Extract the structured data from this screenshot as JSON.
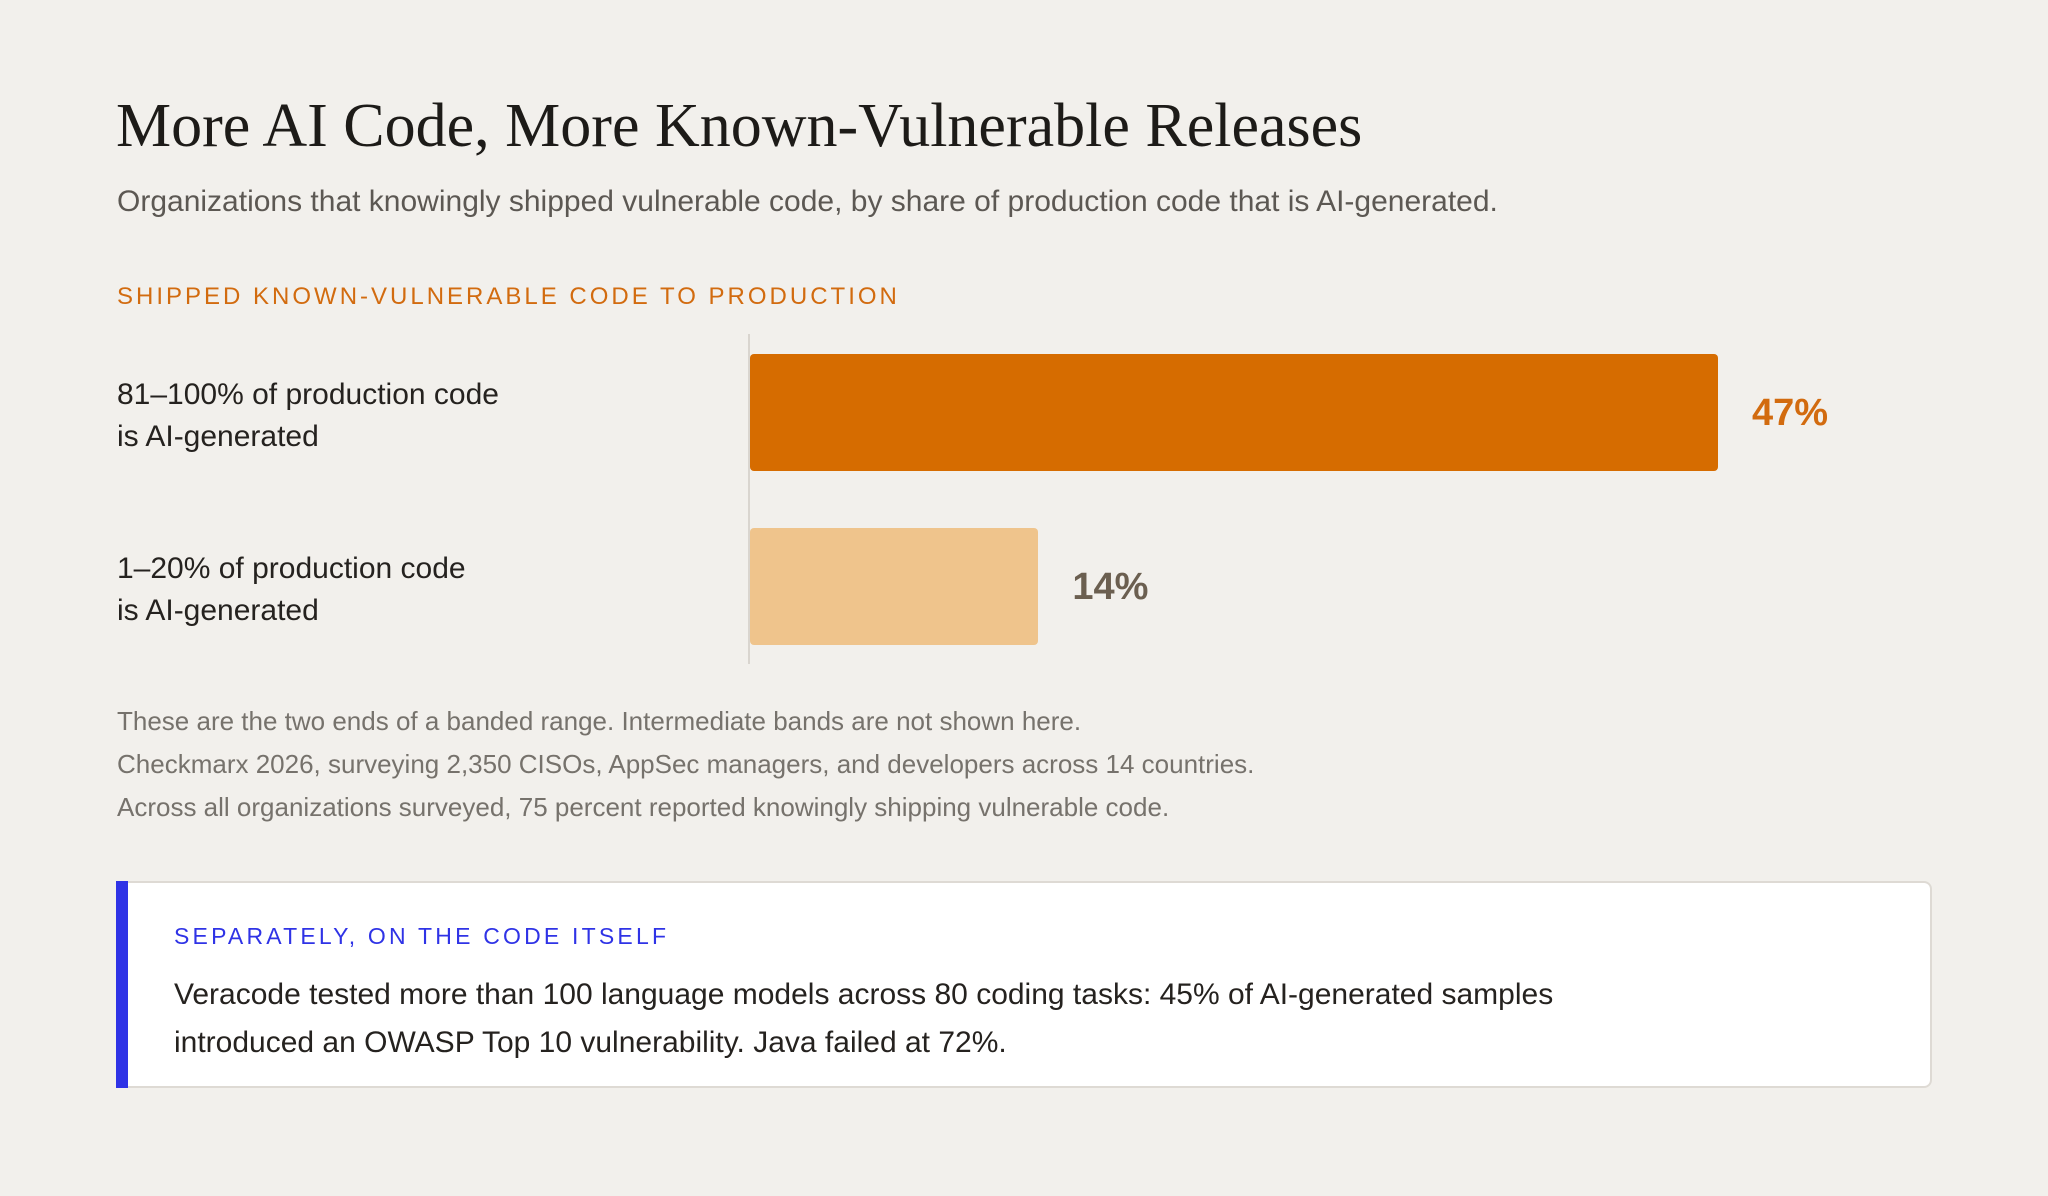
{
  "title": "More AI Code, More Known-Vulnerable Releases",
  "subtitle": "Organizations that knowingly shipped vulnerable code, by share of production code that is AI-generated.",
  "section_label": "SHIPPED KNOWN-VULNERABLE CODE TO PRODUCTION",
  "colors": {
    "accent": "#d26b0f",
    "bar_high": "#d66c00",
    "bar_low": "#efc48c",
    "value_low": "#6b5f50",
    "callout_accent": "#2f33e6"
  },
  "chart_data": {
    "type": "bar",
    "orientation": "horizontal",
    "title": "SHIPPED KNOWN-VULNERABLE CODE TO PRODUCTION",
    "categories": [
      [
        "81–100% of production code",
        "is AI-generated"
      ],
      [
        "1–20% of production code",
        "is AI-generated"
      ]
    ],
    "values": [
      47,
      14
    ],
    "value_labels": [
      "47%",
      "14%"
    ],
    "xlim": [
      0,
      47
    ],
    "grid": false,
    "legend": "none"
  },
  "notes": [
    "These are the two ends of a banded range. Intermediate bands are not shown here.",
    "Checkmarx 2026, surveying 2,350 CISOs, AppSec managers, and developers across 14 countries.",
    "Across all organizations surveyed, 75 percent reported knowingly shipping vulnerable code."
  ],
  "callout": {
    "label": "SEPARATELY, ON THE CODE ITSELF",
    "text": "Veracode tested more than 100 language models across 80 coding tasks: 45% of AI-generated samples introduced an OWASP Top 10 vulnerability. Java failed at 72%."
  }
}
